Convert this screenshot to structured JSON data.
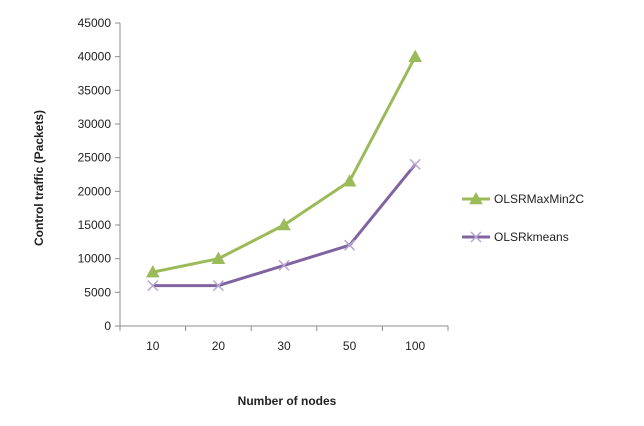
{
  "chart_data": {
    "type": "line",
    "title": "",
    "xlabel": "Number of nodes",
    "ylabel": "Control traffic (Packets)",
    "categories": [
      "10",
      "20",
      "30",
      "50",
      "100"
    ],
    "ylim": [
      0,
      45000
    ],
    "yticks": [
      0,
      5000,
      10000,
      15000,
      20000,
      25000,
      30000,
      35000,
      40000,
      45000
    ],
    "grid": false,
    "legend_position": "right",
    "series": [
      {
        "name": "OLSRMaxMin2C",
        "values": [
          8000,
          10000,
          15000,
          21500,
          40000
        ],
        "color": "#9bbb59",
        "marker": "triangle"
      },
      {
        "name": "OLSRkmeans",
        "values": [
          6000,
          6000,
          9000,
          12000,
          24000
        ],
        "color": "#8064a2",
        "marker": "x"
      }
    ]
  }
}
